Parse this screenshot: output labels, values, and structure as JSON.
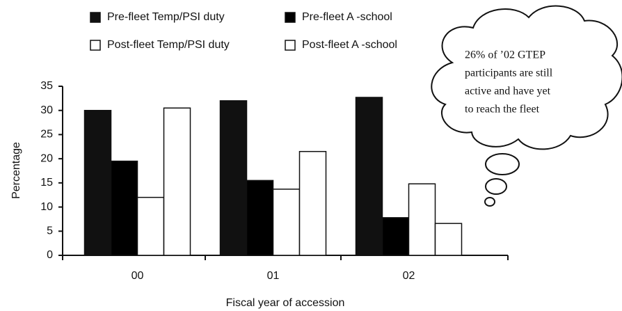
{
  "chart_data": {
    "type": "bar",
    "categories": [
      "00",
      "01",
      "02"
    ],
    "series": [
      {
        "name": "Pre-fleet Temp/PSI duty",
        "color": "#111111",
        "values": [
          30,
          32,
          32.7
        ]
      },
      {
        "name": "Pre-fleet A -school",
        "color": "#000000",
        "values": [
          19.5,
          15.5,
          7.8
        ]
      },
      {
        "name": "Post-fleet Temp/PSI duty",
        "color": "#ffffff",
        "values": [
          12,
          13.7,
          14.8
        ]
      },
      {
        "name": "Post-fleet A -school",
        "color": "#ffffff",
        "values": [
          30.5,
          21.5,
          6.6
        ]
      }
    ],
    "ylim": [
      0,
      35
    ],
    "yticks": [
      0,
      5,
      10,
      15,
      20,
      25,
      30,
      35
    ],
    "ylabel": "Percentage",
    "xlabel": "Fiscal year of accession",
    "annotation": [
      "26% of ’02 GTEP",
      "participants are still",
      "active and have yet",
      "to reach the fleet"
    ],
    "grid": false
  }
}
